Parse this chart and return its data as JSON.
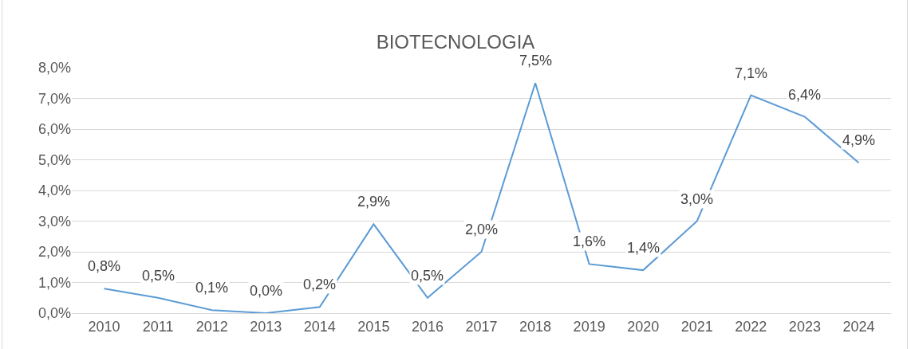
{
  "chart_data": {
    "type": "line",
    "title": "BIOTECNOLOGIA",
    "categories": [
      "2010",
      "2011",
      "2012",
      "2013",
      "2014",
      "2015",
      "2016",
      "2017",
      "2018",
      "2019",
      "2020",
      "2021",
      "2022",
      "2023",
      "2024"
    ],
    "series": [
      {
        "color": "#5b9bd5",
        "values": [
          0.8,
          0.5,
          0.1,
          0.0,
          0.2,
          2.9,
          0.5,
          2.0,
          7.5,
          1.6,
          1.4,
          3.0,
          7.1,
          6.4,
          4.9
        ],
        "value_labels": [
          "0,8%",
          "0,5%",
          "0,1%",
          "0,0%",
          "0,2%",
          "2,9%",
          "0,5%",
          "2,0%",
          "7,5%",
          "1,6%",
          "1,4%",
          "3,0%",
          "7,1%",
          "6,4%",
          "4,9%"
        ]
      }
    ],
    "ylim": [
      0,
      8
    ],
    "yticks": [
      {
        "value": 0,
        "label": "0,0%"
      },
      {
        "value": 1,
        "label": "1,0%"
      },
      {
        "value": 2,
        "label": "2,0%"
      },
      {
        "value": 3,
        "label": "3,0%"
      },
      {
        "value": 4,
        "label": "4,0%"
      },
      {
        "value": 5,
        "label": "5,0%"
      },
      {
        "value": 6,
        "label": "6,0%"
      },
      {
        "value": 7,
        "label": "7,0%"
      },
      {
        "value": 8,
        "label": "8,0%"
      }
    ],
    "grid": "y",
    "marker": "none",
    "line_style": "solid"
  }
}
